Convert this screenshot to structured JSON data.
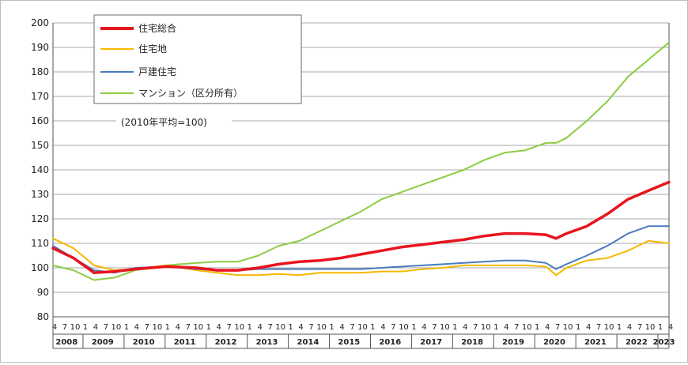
{
  "chart_data": {
    "type": "line",
    "note": "(2010年平均=100)",
    "ylim": [
      80,
      200
    ],
    "yticks": [
      80,
      90,
      100,
      110,
      120,
      130,
      140,
      150,
      160,
      170,
      180,
      190,
      200
    ],
    "x_start": "2008-04",
    "x_end": "2023-04",
    "month_ticks": [
      "4",
      "7",
      "10",
      "1"
    ],
    "year_labels": [
      "2008",
      "2009",
      "2010",
      "2011",
      "2012",
      "2013",
      "2014",
      "2015",
      "2016",
      "2017",
      "2018",
      "2019",
      "2020",
      "2021",
      "2022",
      "2023"
    ],
    "series": [
      {
        "name": "住宅総合",
        "color": "#e8141e",
        "points": [
          [
            "2008-04",
            108
          ],
          [
            "2008-10",
            104
          ],
          [
            "2009-04",
            98
          ],
          [
            "2009-10",
            98.5
          ],
          [
            "2010-04",
            99.5
          ],
          [
            "2011-01",
            100.5
          ],
          [
            "2011-10",
            100
          ],
          [
            "2012-04",
            99
          ],
          [
            "2012-10",
            99
          ],
          [
            "2013-04",
            100
          ],
          [
            "2013-10",
            101.5
          ],
          [
            "2014-04",
            102.5
          ],
          [
            "2014-10",
            103
          ],
          [
            "2015-04",
            104
          ],
          [
            "2015-10",
            105.5
          ],
          [
            "2016-04",
            107
          ],
          [
            "2016-10",
            108.5
          ],
          [
            "2017-04",
            109.5
          ],
          [
            "2017-10",
            110.5
          ],
          [
            "2018-04",
            111.5
          ],
          [
            "2018-10",
            113
          ],
          [
            "2019-04",
            114
          ],
          [
            "2019-10",
            114
          ],
          [
            "2020-04",
            113.5
          ],
          [
            "2020-07",
            112
          ],
          [
            "2020-10",
            114
          ],
          [
            "2021-04",
            117
          ],
          [
            "2021-10",
            122
          ],
          [
            "2022-04",
            128
          ],
          [
            "2022-10",
            131.5
          ],
          [
            "2023-04",
            135
          ]
        ]
      },
      {
        "name": "住宅地",
        "color": "#f5b800",
        "points": [
          [
            "2008-04",
            112
          ],
          [
            "2008-10",
            108
          ],
          [
            "2009-04",
            101
          ],
          [
            "2009-10",
            99
          ],
          [
            "2010-04",
            99.5
          ],
          [
            "2011-01",
            101
          ],
          [
            "2011-10",
            99
          ],
          [
            "2012-04",
            98
          ],
          [
            "2012-10",
            97
          ],
          [
            "2013-04",
            97
          ],
          [
            "2013-10",
            97.5
          ],
          [
            "2014-04",
            97
          ],
          [
            "2014-10",
            98
          ],
          [
            "2015-04",
            98
          ],
          [
            "2015-10",
            98
          ],
          [
            "2016-04",
            98.5
          ],
          [
            "2016-10",
            98.5
          ],
          [
            "2017-04",
            99.5
          ],
          [
            "2017-10",
            100
          ],
          [
            "2018-04",
            101
          ],
          [
            "2018-10",
            101
          ],
          [
            "2019-04",
            101
          ],
          [
            "2019-10",
            101
          ],
          [
            "2020-04",
            100.5
          ],
          [
            "2020-07",
            97
          ],
          [
            "2020-10",
            100
          ],
          [
            "2021-04",
            103
          ],
          [
            "2021-10",
            104
          ],
          [
            "2022-04",
            107
          ],
          [
            "2022-10",
            111
          ],
          [
            "2023-04",
            110
          ]
        ]
      },
      {
        "name": "戸建住宅",
        "color": "#4a7bbf",
        "points": [
          [
            "2008-04",
            109
          ],
          [
            "2008-10",
            104
          ],
          [
            "2009-04",
            99
          ],
          [
            "2009-10",
            98
          ],
          [
            "2010-04",
            100
          ],
          [
            "2011-01",
            100.5
          ],
          [
            "2011-10",
            99.5
          ],
          [
            "2012-04",
            99
          ],
          [
            "2012-10",
            99
          ],
          [
            "2013-04",
            99.5
          ],
          [
            "2013-10",
            99.5
          ],
          [
            "2014-04",
            99.5
          ],
          [
            "2014-10",
            99.5
          ],
          [
            "2015-04",
            99.5
          ],
          [
            "2015-10",
            99.5
          ],
          [
            "2016-04",
            100
          ],
          [
            "2016-10",
            100.5
          ],
          [
            "2017-04",
            101
          ],
          [
            "2017-10",
            101.5
          ],
          [
            "2018-04",
            102
          ],
          [
            "2018-10",
            102.5
          ],
          [
            "2019-04",
            103
          ],
          [
            "2019-10",
            103
          ],
          [
            "2020-04",
            102
          ],
          [
            "2020-07",
            99.5
          ],
          [
            "2020-10",
            101.5
          ],
          [
            "2021-04",
            105
          ],
          [
            "2021-10",
            109
          ],
          [
            "2022-04",
            114
          ],
          [
            "2022-10",
            117
          ],
          [
            "2023-04",
            117
          ]
        ]
      },
      {
        "name": "マンション（区分所有）",
        "color": "#8ccc44",
        "points": [
          [
            "2008-04",
            101
          ],
          [
            "2008-10",
            99
          ],
          [
            "2009-04",
            95
          ],
          [
            "2009-10",
            96
          ],
          [
            "2010-04",
            99
          ],
          [
            "2011-01",
            101
          ],
          [
            "2011-10",
            102
          ],
          [
            "2012-04",
            102.5
          ],
          [
            "2012-10",
            102.5
          ],
          [
            "2013-04",
            105
          ],
          [
            "2013-10",
            109
          ],
          [
            "2014-04",
            111
          ],
          [
            "2014-10",
            115
          ],
          [
            "2015-04",
            119
          ],
          [
            "2015-10",
            123
          ],
          [
            "2016-04",
            128
          ],
          [
            "2016-10",
            131
          ],
          [
            "2017-04",
            134
          ],
          [
            "2017-10",
            137
          ],
          [
            "2018-04",
            140
          ],
          [
            "2018-10",
            144
          ],
          [
            "2019-04",
            147
          ],
          [
            "2019-10",
            148
          ],
          [
            "2020-04",
            151
          ],
          [
            "2020-07",
            151
          ],
          [
            "2020-10",
            153
          ],
          [
            "2021-04",
            160
          ],
          [
            "2021-10",
            168
          ],
          [
            "2022-04",
            178
          ],
          [
            "2022-10",
            185
          ],
          [
            "2023-04",
            192
          ]
        ]
      }
    ]
  }
}
